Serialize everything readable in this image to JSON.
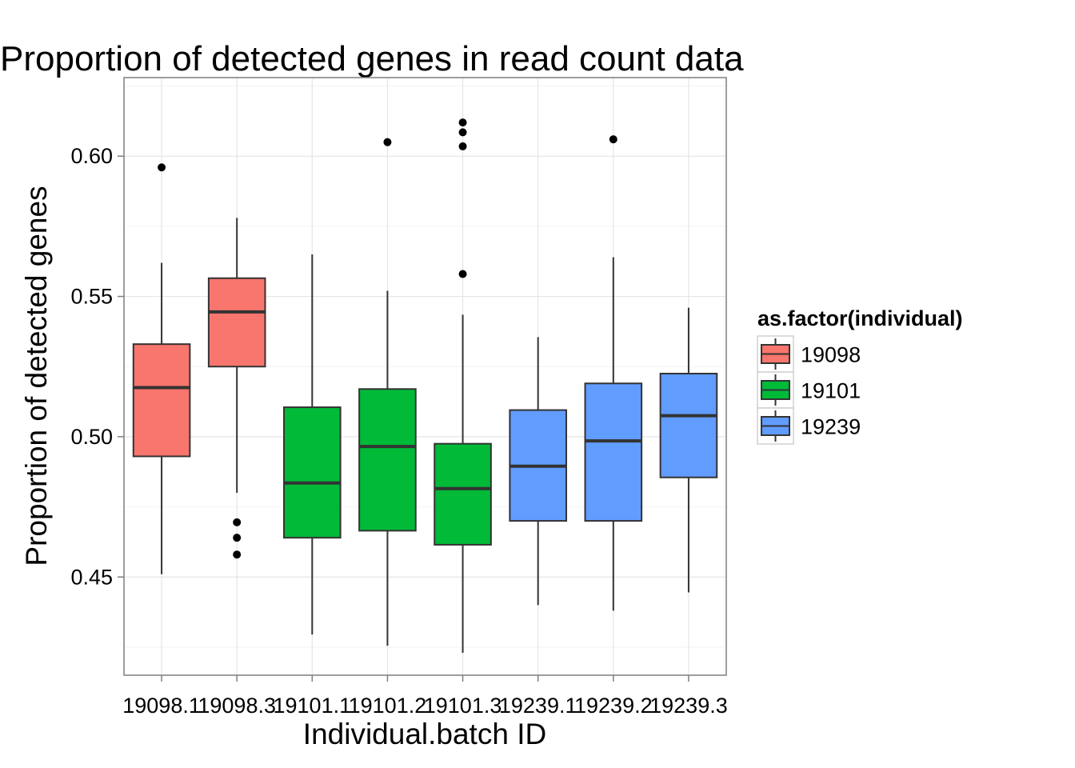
{
  "chart_data": {
    "type": "boxplot",
    "title": "Proportion of detected genes in read count data",
    "xlabel": "Individual.batch ID",
    "ylabel": "Proportion of detected genes",
    "ylim": [
      0.415,
      0.628
    ],
    "yticks": [
      0.45,
      0.5,
      0.55,
      0.6
    ],
    "ytick_labels": [
      "0.45",
      "0.50",
      "0.55",
      "0.60"
    ],
    "grid": true,
    "legend": {
      "title": "as.factor(individual)",
      "position": "right",
      "entries": [
        {
          "label": "19098",
          "color": "#F8766D"
        },
        {
          "label": "19101",
          "color": "#00BA38"
        },
        {
          "label": "19239",
          "color": "#619CFF"
        }
      ]
    },
    "categories": [
      "19098.1",
      "19098.3",
      "19101.1",
      "19101.2",
      "19101.3",
      "19239.1",
      "19239.2",
      "19239.3"
    ],
    "boxes": [
      {
        "category": "19098.1",
        "group": "19098",
        "whisker_low": 0.451,
        "q1": 0.493,
        "median": 0.5175,
        "q3": 0.533,
        "whisker_high": 0.562,
        "outliers": [
          0.596
        ]
      },
      {
        "category": "19098.3",
        "group": "19098",
        "whisker_low": 0.48,
        "q1": 0.525,
        "median": 0.5445,
        "q3": 0.5565,
        "whisker_high": 0.578,
        "outliers": [
          0.4695,
          0.464,
          0.458
        ]
      },
      {
        "category": "19101.1",
        "group": "19101",
        "whisker_low": 0.4295,
        "q1": 0.464,
        "median": 0.4835,
        "q3": 0.5105,
        "whisker_high": 0.565,
        "outliers": []
      },
      {
        "category": "19101.2",
        "group": "19101",
        "whisker_low": 0.4255,
        "q1": 0.4665,
        "median": 0.4965,
        "q3": 0.517,
        "whisker_high": 0.552,
        "outliers": [
          0.605
        ]
      },
      {
        "category": "19101.3",
        "group": "19101",
        "whisker_low": 0.423,
        "q1": 0.4615,
        "median": 0.4815,
        "q3": 0.4975,
        "whisker_high": 0.5435,
        "outliers": [
          0.558,
          0.6035,
          0.6085,
          0.612
        ]
      },
      {
        "category": "19239.1",
        "group": "19239",
        "whisker_low": 0.44,
        "q1": 0.47,
        "median": 0.4895,
        "q3": 0.5095,
        "whisker_high": 0.5355,
        "outliers": []
      },
      {
        "category": "19239.2",
        "group": "19239",
        "whisker_low": 0.438,
        "q1": 0.47,
        "median": 0.4985,
        "q3": 0.519,
        "whisker_high": 0.564,
        "outliers": [
          0.606
        ]
      },
      {
        "category": "19239.3",
        "group": "19239",
        "whisker_low": 0.4445,
        "q1": 0.4855,
        "median": 0.5075,
        "q3": 0.5225,
        "whisker_high": 0.546,
        "outliers": []
      }
    ]
  }
}
